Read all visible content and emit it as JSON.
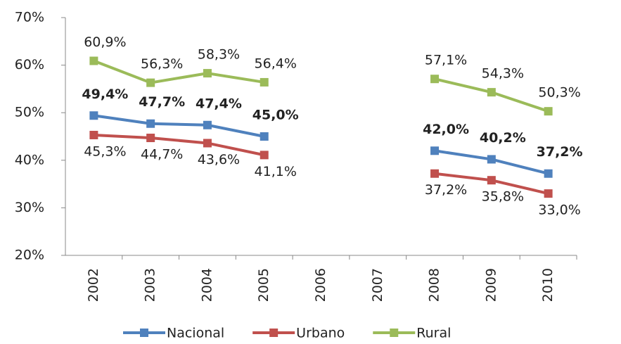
{
  "chart_data": {
    "type": "line",
    "categories": [
      "2002",
      "2003",
      "2004",
      "2005",
      "2006",
      "2007",
      "2008",
      "2009",
      "2010"
    ],
    "series": [
      {
        "name": "Nacional",
        "color": "#4f81bd",
        "values": [
          49.4,
          47.7,
          47.4,
          45.0,
          null,
          null,
          42.0,
          40.2,
          37.2
        ],
        "value_labels": [
          "49,4%",
          "47,7%",
          "47,4%",
          "45,0%",
          null,
          null,
          "42,0%",
          "40,2%",
          "37,2%"
        ]
      },
      {
        "name": "Urbano",
        "color": "#c0504d",
        "values": [
          45.3,
          44.7,
          43.6,
          41.1,
          null,
          null,
          37.2,
          35.8,
          33.0
        ],
        "value_labels": [
          "45,3%",
          "44,7%",
          "43,6%",
          "41,1%",
          null,
          null,
          "37,2%",
          "35,8%",
          "33,0%"
        ]
      },
      {
        "name": "Rural",
        "color": "#9bbb59",
        "values": [
          60.9,
          56.3,
          58.3,
          56.4,
          null,
          null,
          57.1,
          54.3,
          50.3
        ],
        "value_labels": [
          "60,9%",
          "56,3%",
          "58,3%",
          "56,4%",
          null,
          null,
          "57,1%",
          "54,3%",
          "50,3%"
        ]
      }
    ],
    "ylim": [
      20,
      70
    ],
    "yticks": [
      {
        "value": 20,
        "label": "20%"
      },
      {
        "value": 30,
        "label": "30%"
      },
      {
        "value": 40,
        "label": "40%"
      },
      {
        "value": 50,
        "label": "50%"
      },
      {
        "value": 60,
        "label": "60%"
      },
      {
        "value": 70,
        "label": "70%"
      }
    ],
    "legend": "bottom"
  }
}
